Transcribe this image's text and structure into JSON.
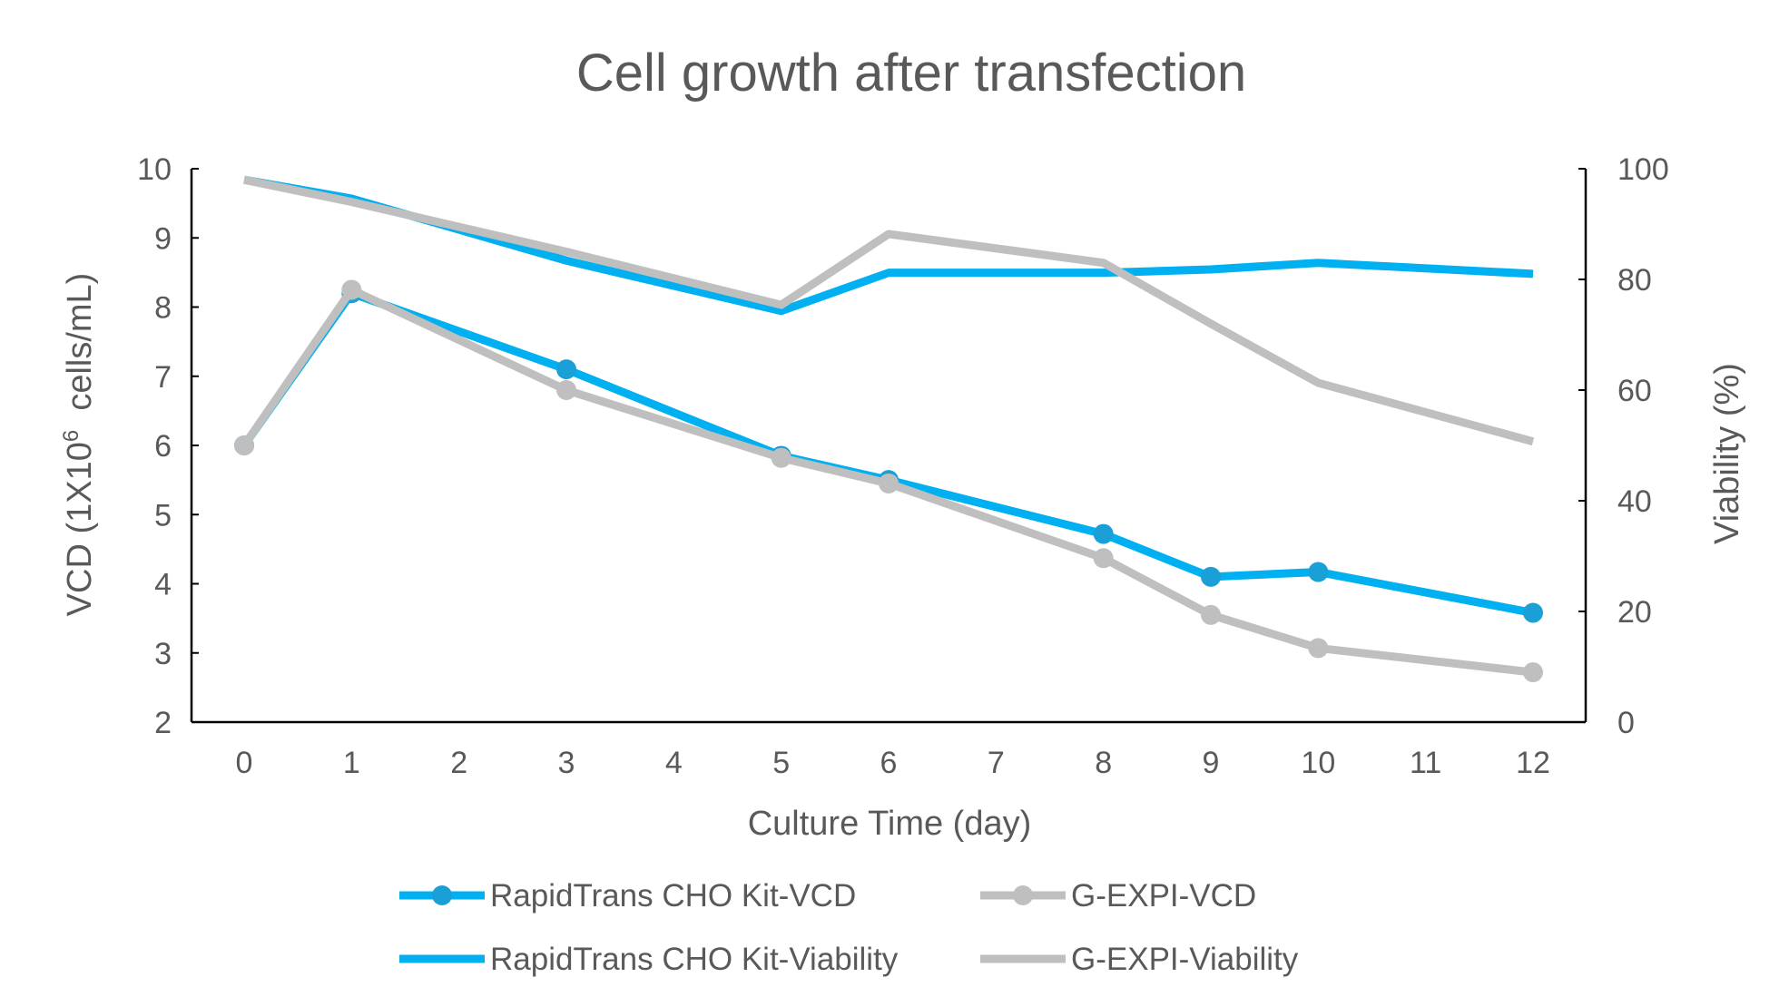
{
  "chart_data": {
    "type": "line",
    "title": "Cell growth after transfection",
    "xlabel": "Culture Time (day)",
    "ylabel": "VCD (1X10^6 cells/mL)",
    "ylabel_parts": {
      "base": "VCD (1X10",
      "sup": "6",
      "rest": "  cells/mL)"
    },
    "y2label": "Viability (%)",
    "categories": [
      "0",
      "1",
      "2",
      "3",
      "4",
      "5",
      "6",
      "7",
      "8",
      "9",
      "10",
      "11",
      "12"
    ],
    "ylim": [
      2,
      10
    ],
    "y2lim": [
      0,
      100
    ],
    "yticks": [
      "2",
      "3",
      "4",
      "5",
      "6",
      "7",
      "8",
      "9",
      "10"
    ],
    "y2ticks": [
      "0",
      "20",
      "40",
      "60",
      "80",
      "100"
    ],
    "legend_position": "bottom",
    "colors": {
      "blue": "#00b0f0",
      "blue_marker": "#1a9fd6",
      "gray": "#bfbfbf",
      "text": "#595959"
    },
    "series": [
      {
        "name": "RapidTrans CHO Kit-VCD",
        "axis": "left",
        "color": "#00b0f0",
        "markers": true,
        "x": [
          0,
          1,
          3,
          5,
          6,
          8,
          9,
          10,
          12
        ],
        "values": [
          6.0,
          8.2,
          7.1,
          5.85,
          5.5,
          4.72,
          4.1,
          4.17,
          3.58
        ]
      },
      {
        "name": "G-EXPI-VCD",
        "axis": "left",
        "color": "#bfbfbf",
        "markers": true,
        "x": [
          0,
          1,
          3,
          5,
          6,
          8,
          9,
          10,
          12
        ],
        "values": [
          6.0,
          8.25,
          6.8,
          5.82,
          5.45,
          4.37,
          3.55,
          3.07,
          2.72
        ]
      },
      {
        "name": "RapidTrans CHO Kit-Viability",
        "axis": "right",
        "color": "#00b0f0",
        "markers": false,
        "x": [
          0,
          1,
          3,
          5,
          6,
          8,
          9,
          10,
          12
        ],
        "values": [
          98,
          94.6,
          83.4,
          74.3,
          81.2,
          81.2,
          81.8,
          83,
          81
        ]
      },
      {
        "name": "G-EXPI-Viability",
        "axis": "right",
        "color": "#bfbfbf",
        "markers": false,
        "x": [
          0,
          1,
          3,
          5,
          6,
          8,
          9,
          10,
          12
        ],
        "values": [
          98,
          94,
          85,
          75.4,
          88.2,
          83,
          72,
          61.3,
          50.7
        ]
      }
    ]
  }
}
